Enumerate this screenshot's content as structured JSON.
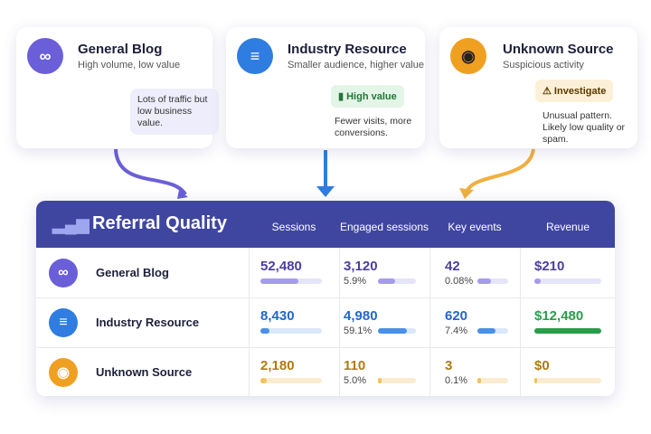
{
  "cards": [
    {
      "title": "General Blog",
      "subtitle": "High volume, low value",
      "note": "Lots of traffic but low business value."
    },
    {
      "title": "Industry Resource",
      "subtitle": "Smaller audience, higher value",
      "badge": "High value",
      "note": "Fewer visits, more conversions."
    },
    {
      "title": "Unknown Source",
      "subtitle": "Suspicious activity",
      "badge": "Investigate",
      "note": "Unusual pattern. Likely low quality or spam."
    }
  ],
  "table": {
    "title": "Referral Quality",
    "columns": [
      "Sessions",
      "Engaged sessions",
      "Key events",
      "Revenue"
    ],
    "rows": [
      {
        "name": "General Blog",
        "sessions": "52,480",
        "engaged": "3,120",
        "engaged_rate": "5.9%",
        "key_events": "42",
        "key_rate": "0.08%",
        "revenue": "$210"
      },
      {
        "name": "Industry Resource",
        "sessions": "8,430",
        "engaged": "4,980",
        "engaged_rate": "59.1%",
        "key_events": "620",
        "key_rate": "7.4%",
        "revenue": "$12,480"
      },
      {
        "name": "Unknown Source",
        "sessions": "2,180",
        "engaged": "110",
        "engaged_rate": "5.0%",
        "key_events": "3",
        "key_rate": "0.1%",
        "revenue": "$0"
      }
    ]
  }
}
